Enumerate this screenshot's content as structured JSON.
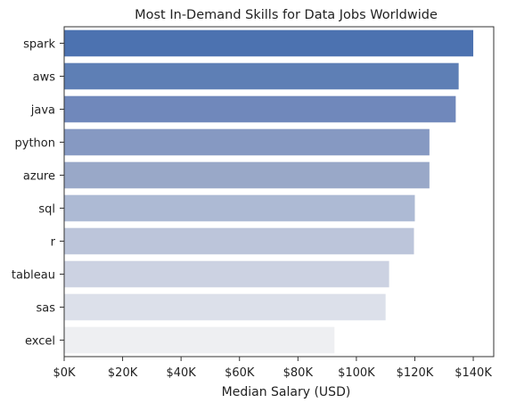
{
  "chart_data": {
    "type": "bar",
    "orientation": "horizontal",
    "title": "Most In-Demand Skills for Data Jobs Worldwide",
    "xlabel": "Median Salary (USD)",
    "ylabel": "",
    "categories": [
      "spark",
      "aws",
      "java",
      "python",
      "azure",
      "sql",
      "r",
      "tableau",
      "sas",
      "excel"
    ],
    "values": [
      140000,
      135000,
      134000,
      125000,
      125000,
      120000,
      119700,
      111200,
      110000,
      92500
    ],
    "xlim": [
      0,
      147000
    ],
    "xticks": [
      0,
      20000,
      40000,
      60000,
      80000,
      100000,
      120000,
      140000
    ],
    "xtick_labels": [
      "$0K",
      "$20K",
      "$40K",
      "$60K",
      "$80K",
      "$100K",
      "$120K",
      "$140K"
    ],
    "colors": [
      "#4c72b0",
      "#5e7fb5",
      "#7088bb",
      "#8699c2",
      "#99a8c8",
      "#adbad4",
      "#bcc5da",
      "#ccd2e2",
      "#dce0ea",
      "#eeeff2"
    ],
    "grid": false,
    "legend": "none"
  }
}
